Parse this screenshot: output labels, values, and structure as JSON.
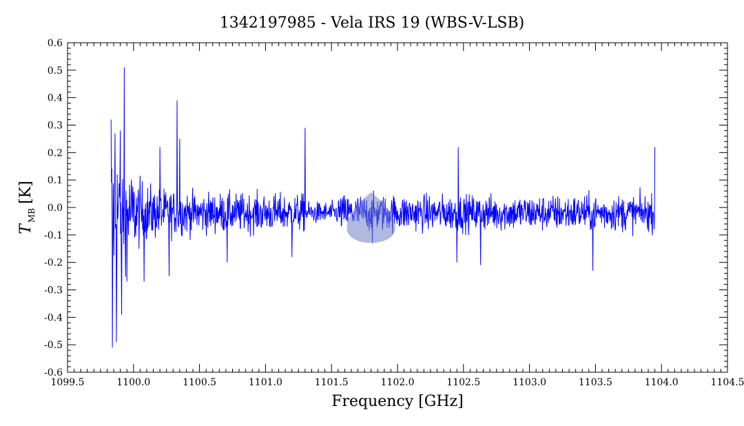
{
  "chart_data": {
    "type": "line",
    "title": "1342197985 - Vela IRS 19 (WBS-V-LSB)",
    "xlabel": "Frequency [GHz]",
    "ylabel_main": "T",
    "ylabel_sub": "MB",
    "ylabel_unit": "[K]",
    "xlim": [
      1099.5,
      1104.5
    ],
    "ylim": [
      -0.6,
      0.6
    ],
    "xticks": [
      1099.5,
      1100.0,
      1100.5,
      1101.0,
      1101.5,
      1102.0,
      1102.5,
      1103.0,
      1103.5,
      1104.0,
      1104.5
    ],
    "xtick_labels": [
      "1099.5",
      "1100.0",
      "1100.5",
      "1101.0",
      "1101.5",
      "1102.0",
      "1102.5",
      "1103.0",
      "1103.5",
      "1104.0",
      "1104.5"
    ],
    "yticks": [
      -0.6,
      -0.5,
      -0.4,
      -0.3,
      -0.2,
      -0.1,
      0.0,
      0.1,
      0.2,
      0.3,
      0.4,
      0.5,
      0.6
    ],
    "ytick_labels": [
      "-0.6",
      "-0.5",
      "-0.4",
      "-0.3",
      "-0.2",
      "-0.1",
      "0.0",
      "0.1",
      "0.2",
      "0.3",
      "0.4",
      "0.5",
      "0.6"
    ],
    "grid": false,
    "series": [
      {
        "color": "#0000ff",
        "x_range": [
          1099.83,
          1103.95
        ],
        "envelope_points": [
          {
            "x": 1099.83,
            "y": 0.32
          },
          {
            "x": 1099.84,
            "y": -0.51
          },
          {
            "x": 1099.86,
            "y": 0.27
          },
          {
            "x": 1099.87,
            "y": -0.49
          },
          {
            "x": 1099.9,
            "y": 0.28
          },
          {
            "x": 1099.91,
            "y": -0.39
          },
          {
            "x": 1099.93,
            "y": 0.51
          },
          {
            "x": 1099.95,
            "y": -0.27
          },
          {
            "x": 1100.08,
            "y": -0.27
          },
          {
            "x": 1100.2,
            "y": 0.22
          },
          {
            "x": 1100.27,
            "y": -0.25
          },
          {
            "x": 1100.33,
            "y": 0.39
          },
          {
            "x": 1100.35,
            "y": 0.25
          },
          {
            "x": 1100.71,
            "y": -0.2
          },
          {
            "x": 1101.2,
            "y": -0.18
          },
          {
            "x": 1101.3,
            "y": 0.29
          },
          {
            "x": 1101.81,
            "y": -0.13
          },
          {
            "x": 1102.45,
            "y": -0.2
          },
          {
            "x": 1102.46,
            "y": 0.22
          },
          {
            "x": 1102.63,
            "y": -0.21
          },
          {
            "x": 1103.48,
            "y": -0.23
          },
          {
            "x": 1103.95,
            "y": 0.22
          }
        ]
      }
    ],
    "overlay_marker": {
      "x": 1101.8,
      "y": -0.05,
      "color": "#6f7fc4"
    }
  }
}
